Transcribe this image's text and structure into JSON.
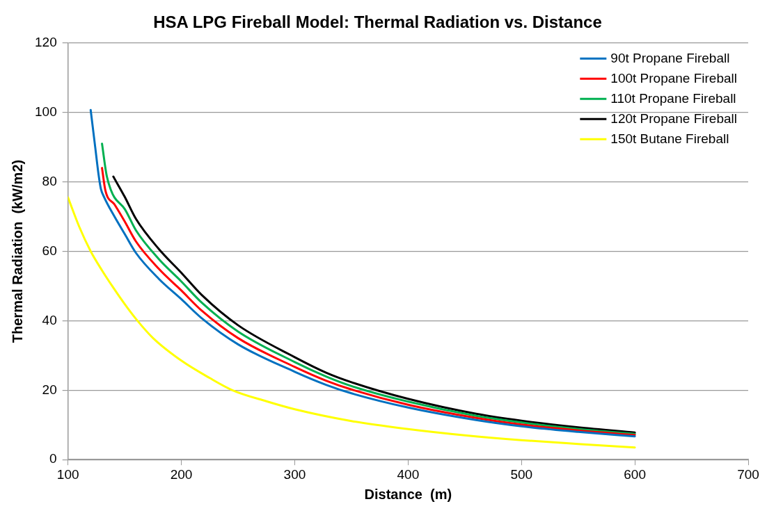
{
  "chart_data": {
    "type": "line",
    "title": "HSA LPG Fireball Model: Thermal Radiation vs. Distance",
    "xlabel": "Distance  (m)",
    "ylabel": "Thermal Radiation  (kW/m2)",
    "xlim": [
      100,
      700
    ],
    "xticks": [
      100,
      200,
      300,
      400,
      500,
      600,
      700
    ],
    "ylim": [
      0,
      120
    ],
    "yticks": [
      0,
      20,
      40,
      60,
      80,
      100,
      120
    ],
    "grid": "y",
    "legend": "top right",
    "marker": "none",
    "line_style": "solid",
    "series": [
      {
        "name": "90t Propane Fireball",
        "color": "#0070c0",
        "x": [
          120,
          124,
          127,
          129,
          132,
          141,
          150,
          160,
          180,
          200,
          218,
          250,
          300,
          328,
          350,
          400,
          460,
          500,
          550,
          600
        ],
        "values": [
          100.7,
          90,
          82,
          78,
          75.5,
          70,
          65,
          59.5,
          52.1,
          46.2,
          40.7,
          33.2,
          25.3,
          21.5,
          19.1,
          15,
          11.4,
          9.6,
          8,
          6.7
        ]
      },
      {
        "name": "100t Propane Fireball",
        "color": "#ff0000",
        "x": [
          130,
          133,
          141,
          150,
          160,
          180,
          200,
          218,
          250,
          300,
          328,
          350,
          400,
          460,
          500,
          550,
          600
        ],
        "values": [
          84,
          77.5,
          73.5,
          68.6,
          62.8,
          55,
          48.7,
          42.9,
          35,
          26.7,
          22.7,
          20.2,
          15.8,
          12,
          10.1,
          8.4,
          7.1
        ]
      },
      {
        "name": "110t Propane Fireball",
        "color": "#00b050",
        "x": [
          130,
          134,
          138,
          141,
          150,
          160,
          180,
          200,
          218,
          250,
          300,
          328,
          350,
          400,
          460,
          500,
          550,
          600
        ],
        "values": [
          91,
          82,
          77.5,
          75.5,
          72.2,
          66,
          57.8,
          51.3,
          45.2,
          36.9,
          28.1,
          23.9,
          21.2,
          16.7,
          12.6,
          10.7,
          8.8,
          7.4
        ]
      },
      {
        "name": "120t Propane Fireball",
        "color": "#000000",
        "x": [
          140,
          150,
          160,
          180,
          200,
          218,
          250,
          300,
          328,
          350,
          400,
          460,
          500,
          550,
          600
        ],
        "values": [
          81.5,
          75.7,
          69.3,
          60.7,
          53.8,
          47.4,
          38.7,
          29.5,
          25,
          22.3,
          17.5,
          13.2,
          11.2,
          9.3,
          7.8
        ]
      },
      {
        "name": "150t Butane Fireball",
        "color": "#ffff00",
        "x": [
          100,
          110,
          120,
          130,
          140,
          150,
          160,
          175,
          200,
          225,
          245,
          275,
          300,
          350,
          400,
          450,
          500,
          550,
          600
        ],
        "values": [
          75.5,
          67,
          60,
          54.5,
          49.5,
          44.8,
          40.5,
          35,
          28.5,
          23.5,
          20,
          16.8,
          14.5,
          11.1,
          8.8,
          7,
          5.6,
          4.5,
          3.5
        ]
      }
    ]
  }
}
